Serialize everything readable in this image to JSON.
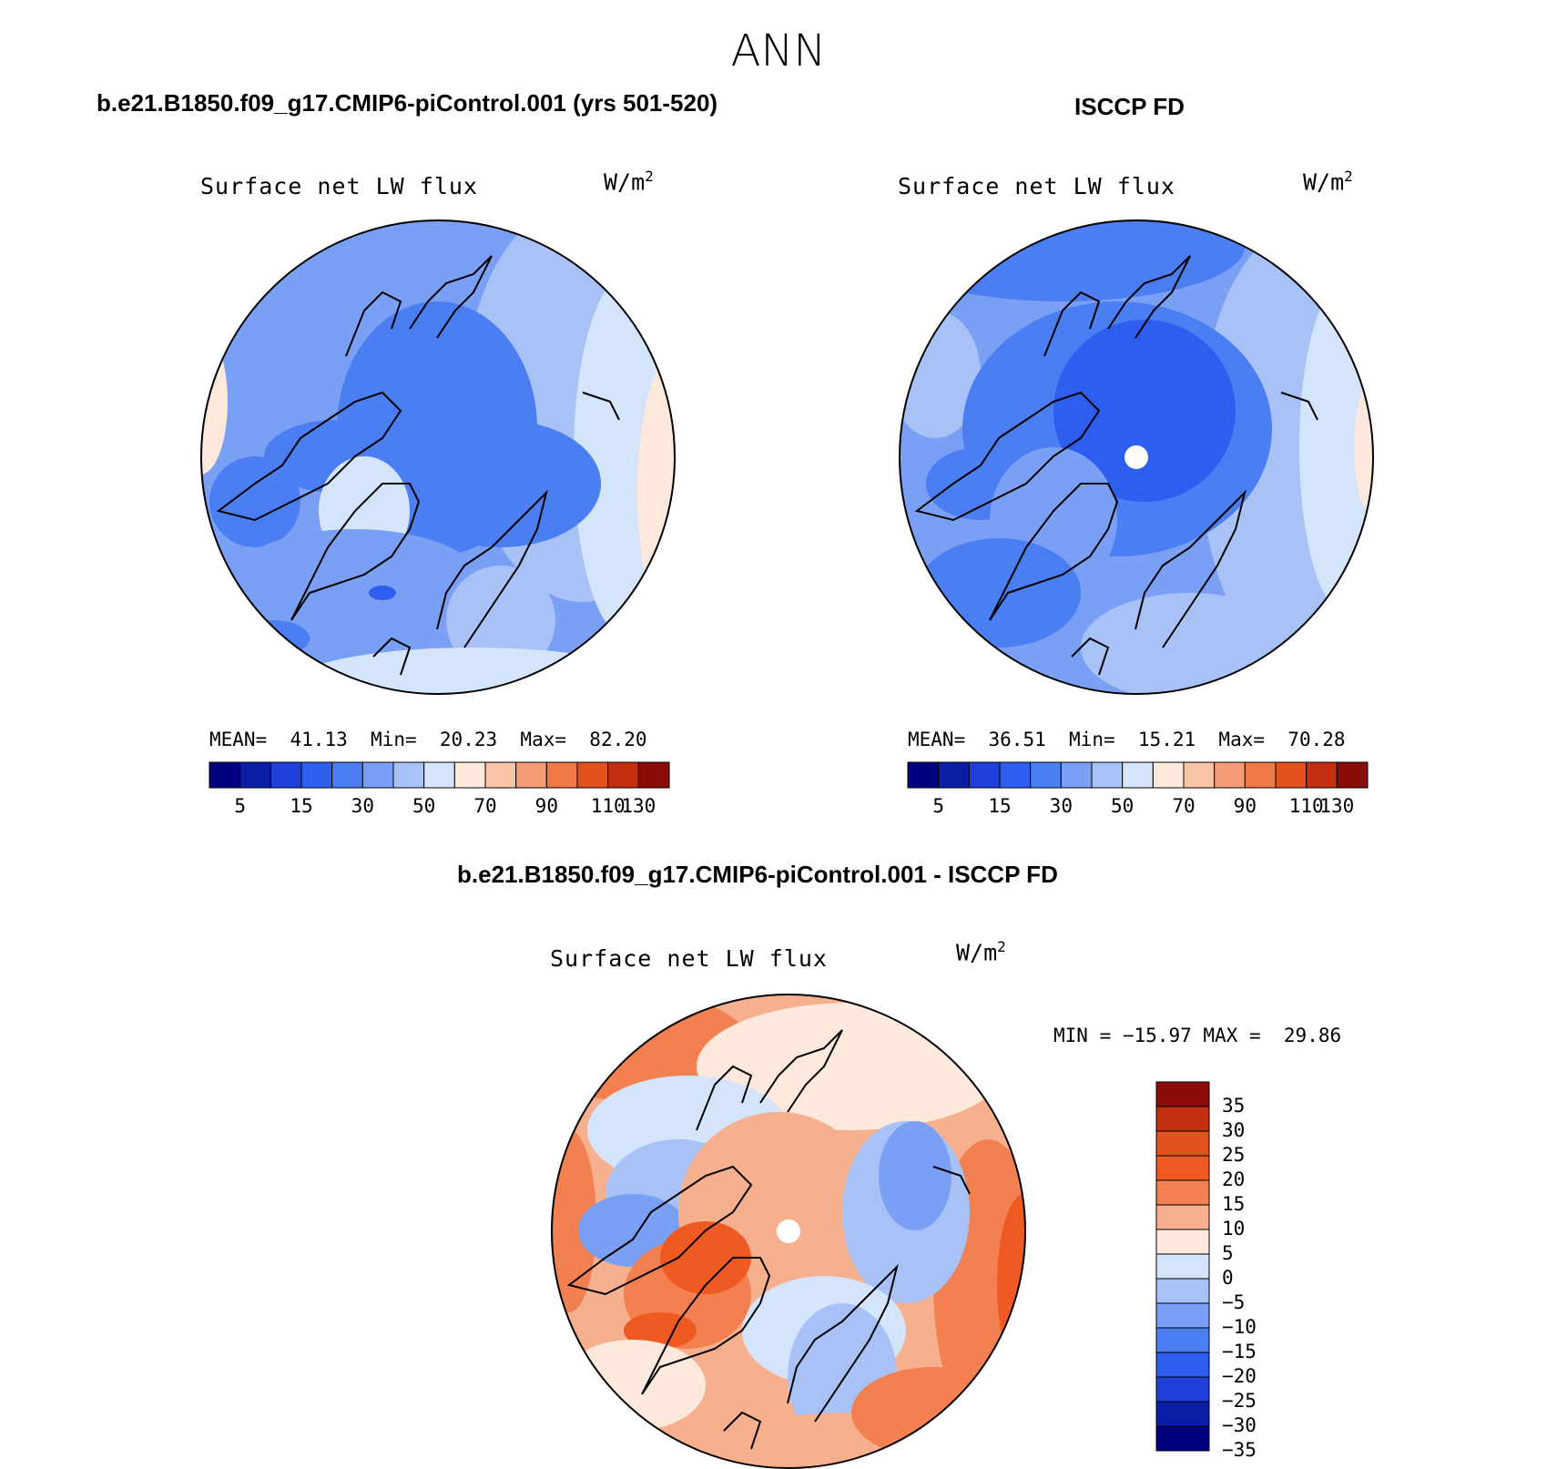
{
  "figure": {
    "season": "ANN"
  },
  "panels": [
    {
      "case_title": "b.e21.B1850.f09_g17.CMIP6-piControl.001 (yrs 501-520)",
      "variable": "Surface net LW flux",
      "units_base": "W/m",
      "units_exp": "2",
      "mean_label": "MEAN=",
      "mean": "41.13",
      "min_label": "Min=",
      "min": "20.23",
      "max_label": "Max=",
      "max": "82.20",
      "show_pole_hole": false
    },
    {
      "case_title": "ISCCP FD",
      "variable": "Surface net LW flux",
      "units_base": "W/m",
      "units_exp": "2",
      "mean_label": "MEAN=",
      "mean": "36.51",
      "min_label": "Min=",
      "min": "15.21",
      "max_label": "Max=",
      "max": "70.28",
      "show_pole_hole": true
    }
  ],
  "diff_panel": {
    "case_title": "b.e21.B1850.f09_g17.CMIP6-piControl.001 - ISCCP FD",
    "variable": "Surface net LW flux",
    "units_base": "W/m",
    "units_exp": "2",
    "min_label": "MIN =",
    "min": "−15.97",
    "max_label": "MAX =",
    "max": "29.86"
  },
  "colorbar_main": {
    "colors": [
      "#00007f",
      "#0a1ea8",
      "#1e3fd8",
      "#2e5ef0",
      "#4a7ef2",
      "#7aa0f5",
      "#a8c2f8",
      "#d4e4fb",
      "#fde8dc",
      "#f8c4a8",
      "#f29b74",
      "#ef7a47",
      "#e3511f",
      "#c42f10",
      "#8a0d0a"
    ],
    "tick_labels": [
      "5",
      "15",
      "30",
      "50",
      "70",
      "90",
      "110",
      "130"
    ],
    "tick_boundaries": [
      1,
      3,
      5,
      7,
      9,
      11,
      13,
      14
    ]
  },
  "colorbar_diff": {
    "colors": [
      "#8a0d0a",
      "#c42f10",
      "#e3511f",
      "#ef5a22",
      "#f28050",
      "#f7b08e",
      "#fde8dc",
      "#d4e4fb",
      "#a8c2f8",
      "#7aa0f5",
      "#4a7ef2",
      "#2e5ef0",
      "#1e3fd8",
      "#0a1ea8",
      "#00007f"
    ],
    "tick_labels": [
      "35",
      "30",
      "25",
      "20",
      "15",
      "10",
      "5",
      "0",
      "−5",
      "−10",
      "−15",
      "−20",
      "−25",
      "−30",
      "−35"
    ]
  },
  "colors": {
    "coastline": "#000000",
    "map_edge": "#000000"
  }
}
